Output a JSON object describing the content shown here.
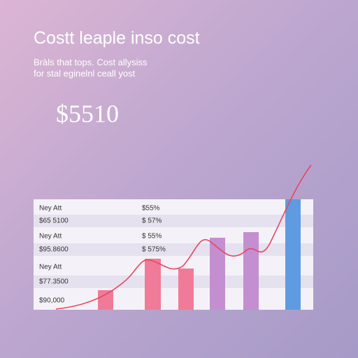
{
  "header": {
    "title": "Costt leaple inso cost",
    "subtitle": [
      "Bràls that tops. Cost allysiss",
      "for stal eginelnl ceall yost"
    ]
  },
  "highlight": "$5510",
  "table": {
    "rows": [
      [
        "Ney Att",
        "$55%"
      ],
      [
        "$65 5100",
        "$ 57%"
      ],
      [
        "Ney Att",
        "$ 55%"
      ],
      [
        "$95.8600",
        "$ 575%"
      ],
      [
        "Ney Att"
      ],
      [
        "$77.3500"
      ],
      [
        "$90,000"
      ]
    ]
  }
}
